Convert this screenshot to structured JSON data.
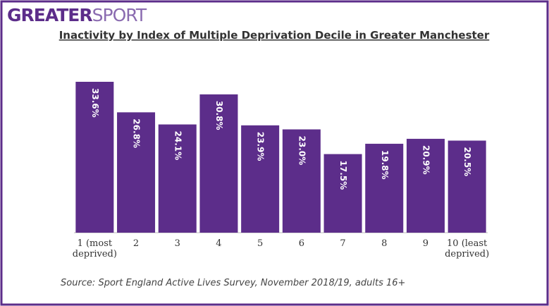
{
  "logo": [
    "GREATER",
    "SPORT"
  ],
  "chart_data": {
    "type": "bar",
    "title": "Inactivity by Index of Multiple Deprivation Decile in Greater Manchester",
    "categories": [
      "1 (most deprived)",
      "2",
      "3",
      "4",
      "5",
      "6",
      "7",
      "8",
      "9",
      "10 (least deprived)"
    ],
    "values": [
      33.6,
      26.8,
      24.1,
      30.8,
      23.9,
      23.0,
      17.5,
      19.8,
      20.9,
      20.5
    ],
    "value_labels": [
      "33.6%",
      "26.8%",
      "24.1%",
      "30.8%",
      "23.9%",
      "23.0%",
      "17.5%",
      "19.8%",
      "20.9%",
      "20.5%"
    ],
    "color": "#5c2d8a",
    "source": "Source: Sport England Active Lives Survey, November 2018/19, adults 16+"
  }
}
